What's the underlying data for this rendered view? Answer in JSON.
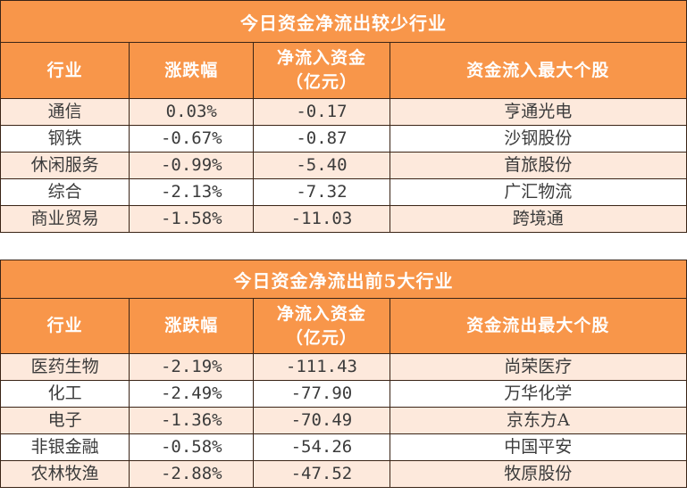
{
  "colors": {
    "header_bg": "#f8964a",
    "header_text": "#ffffff",
    "row_alt_bg": "#fde9dc",
    "row_plain_bg": "#ffffff",
    "border": "#3a2416",
    "body_text": "#3b3b3b"
  },
  "table1": {
    "title": "今日资金净流出较少行业",
    "headers": [
      "行业",
      "涨跌幅",
      "净流入资金",
      "（亿元）",
      "资金流入最大个股"
    ],
    "rows": [
      {
        "industry": "通信",
        "change": "0.03%",
        "net_flow": "-0.17",
        "top_stock": "亨通光电"
      },
      {
        "industry": "钢铁",
        "change": "-0.67%",
        "net_flow": "-0.87",
        "top_stock": "沙钢股份"
      },
      {
        "industry": "休闲服务",
        "change": "-0.99%",
        "net_flow": "-5.40",
        "top_stock": "首旅股份"
      },
      {
        "industry": "综合",
        "change": "-2.13%",
        "net_flow": "-7.32",
        "top_stock": "广汇物流"
      },
      {
        "industry": "商业贸易",
        "change": "-1.58%",
        "net_flow": "-11.03",
        "top_stock": "跨境通"
      }
    ]
  },
  "table2": {
    "title": "今日资金净流出前5大行业",
    "headers": [
      "行业",
      "涨跌幅",
      "净流入资金",
      "（亿元）",
      "资金流出最大个股"
    ],
    "rows": [
      {
        "industry": "医药生物",
        "change": "-2.19%",
        "net_flow": "-111.43",
        "top_stock": "尚荣医疗"
      },
      {
        "industry": "化工",
        "change": "-2.49%",
        "net_flow": "-77.90",
        "top_stock": "万华化学"
      },
      {
        "industry": "电子",
        "change": "-1.36%",
        "net_flow": "-70.49",
        "top_stock": "京东方A"
      },
      {
        "industry": "非银金融",
        "change": "-0.58%",
        "net_flow": "-54.26",
        "top_stock": "中国平安"
      },
      {
        "industry": "农林牧渔",
        "change": "-2.88%",
        "net_flow": "-47.52",
        "top_stock": "牧原股份"
      }
    ]
  }
}
